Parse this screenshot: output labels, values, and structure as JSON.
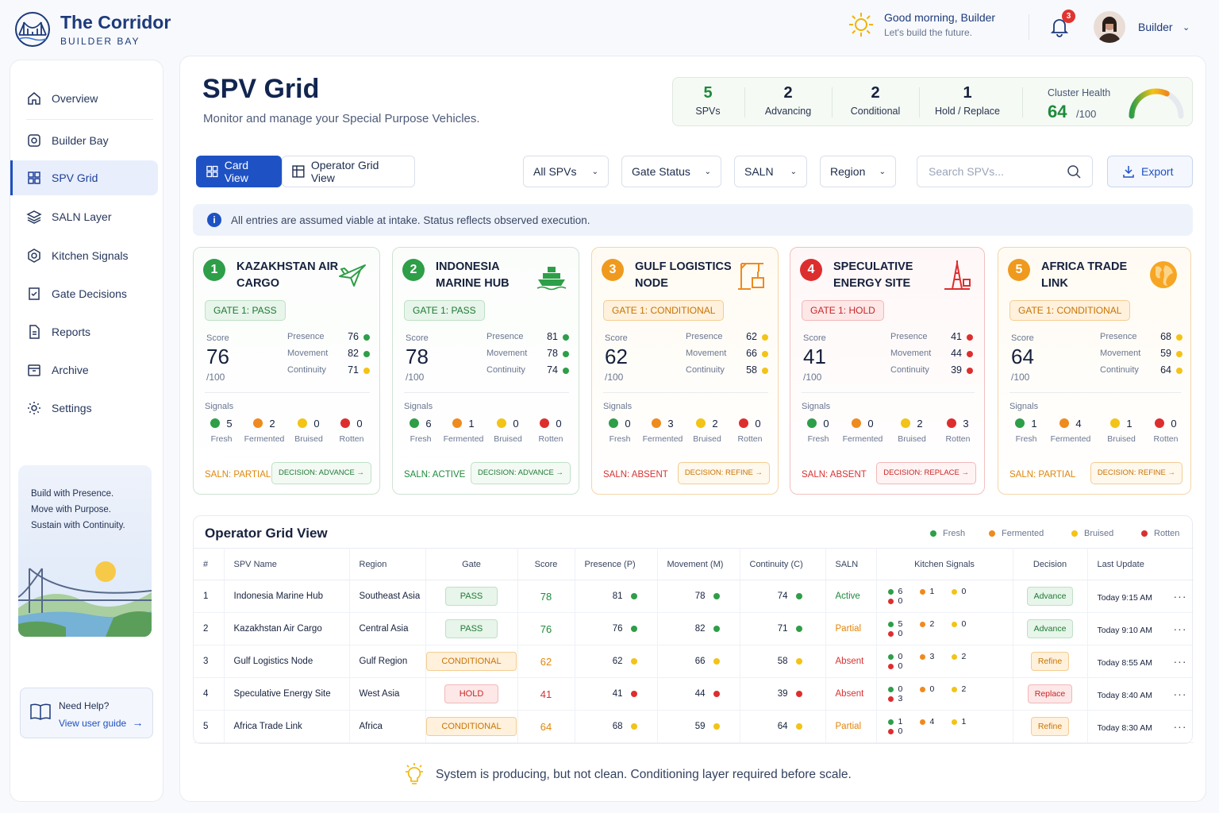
{
  "brand": {
    "title": "The Corridor",
    "subtitle": "BUILDER BAY"
  },
  "header": {
    "greeting": "Good morning, Builder",
    "tagline": "Let's build the future.",
    "notifications": "3",
    "user": "Builder"
  },
  "sidebar": {
    "items": [
      {
        "label": "Overview",
        "icon": "home-icon"
      },
      {
        "label": "Builder Bay",
        "icon": "builder-icon"
      },
      {
        "label": "SPV Grid",
        "icon": "grid-icon"
      },
      {
        "label": "SALN Layer",
        "icon": "layers-icon"
      },
      {
        "label": "Kitchen Signals",
        "icon": "signals-icon"
      },
      {
        "label": "Gate Decisions",
        "icon": "gate-icon"
      },
      {
        "label": "Reports",
        "icon": "report-icon"
      },
      {
        "label": "Archive",
        "icon": "archive-icon"
      },
      {
        "label": "Settings",
        "icon": "gear-icon"
      }
    ],
    "promo": [
      "Build with Presence.",
      "Move with Purpose.",
      "Sustain with Continuity."
    ],
    "help": {
      "title": "Need Help?",
      "link": "View user guide"
    }
  },
  "page": {
    "title": "SPV Grid",
    "subtitle": "Monitor and manage your Special Purpose Vehicles."
  },
  "stats": [
    {
      "n": "5",
      "l": "SPVs"
    },
    {
      "n": "2",
      "l": "Advancing"
    },
    {
      "n": "2",
      "l": "Conditional"
    },
    {
      "n": "1",
      "l": "Hold / Replace"
    }
  ],
  "cluster_health": {
    "label": "Cluster Health",
    "value": "64",
    "of": "/100",
    "fraction": 0.64
  },
  "toolbar": {
    "card_view": "Card View",
    "operator_view": "Operator Grid View",
    "filters": [
      "All SPVs",
      "Gate Status",
      "SALN",
      "Region"
    ],
    "search_placeholder": "Search SPVs...",
    "export": "Export"
  },
  "info": "All entries are assumed viable at intake. Status reflects observed execution.",
  "labels": {
    "score": "Score",
    "of": "/100",
    "presence": "Presence",
    "movement": "Movement",
    "continuity": "Continuity",
    "signals": "Signals",
    "fresh": "Fresh",
    "fermented": "Fermented",
    "bruised": "Bruised",
    "rotten": "Rotten"
  },
  "cards": [
    {
      "num": "1",
      "title": "KAZAKHSTAN AIR CARGO",
      "gate": "GATE 1: PASS",
      "score": "76",
      "p": "76",
      "m": "82",
      "c": "71",
      "sig": [
        "5",
        "2",
        "0",
        "0"
      ],
      "saln": "SALN: PARTIAL",
      "decision": "DECISION: ADVANCE"
    },
    {
      "num": "2",
      "title": "INDONESIA MARINE HUB",
      "gate": "GATE 1: PASS",
      "score": "78",
      "p": "81",
      "m": "78",
      "c": "74",
      "sig": [
        "6",
        "1",
        "0",
        "0"
      ],
      "saln": "SALN: ACTIVE",
      "decision": "DECISION: ADVANCE"
    },
    {
      "num": "3",
      "title": "GULF LOGISTICS NODE",
      "gate": "GATE 1: CONDITIONAL",
      "score": "62",
      "p": "62",
      "m": "66",
      "c": "58",
      "sig": [
        "0",
        "3",
        "2",
        "0"
      ],
      "saln": "SALN: ABSENT",
      "decision": "DECISION: REFINE"
    },
    {
      "num": "4",
      "title": "SPECULATIVE ENERGY SITE",
      "gate": "GATE 1: HOLD",
      "score": "41",
      "p": "41",
      "m": "44",
      "c": "39",
      "sig": [
        "0",
        "0",
        "2",
        "3"
      ],
      "saln": "SALN: ABSENT",
      "decision": "DECISION: REPLACE"
    },
    {
      "num": "5",
      "title": "AFRICA TRADE LINK",
      "gate": "GATE 1: CONDITIONAL",
      "score": "64",
      "p": "68",
      "m": "59",
      "c": "64",
      "sig": [
        "1",
        "4",
        "1",
        "0"
      ],
      "saln": "SALN: PARTIAL",
      "decision": "DECISION: REFINE"
    }
  ],
  "table": {
    "title": "Operator Grid View",
    "columns": [
      "#",
      "SPV Name",
      "Region",
      "Gate",
      "Score",
      "Presence (P)",
      "Movement (M)",
      "Continuity (C)",
      "SALN",
      "Kitchen Signals",
      "Decision",
      "Last Update"
    ],
    "rows": [
      {
        "n": "1",
        "name": "Indonesia Marine Hub",
        "region": "Southeast Asia",
        "gate": "PASS",
        "score": "78",
        "p": "81",
        "m": "78",
        "c": "74",
        "saln": "Active",
        "ks": [
          "6",
          "1",
          "0",
          "0"
        ],
        "decision": "Advance",
        "updated": "Today 9:15 AM"
      },
      {
        "n": "2",
        "name": "Kazakhstan Air Cargo",
        "region": "Central Asia",
        "gate": "PASS",
        "score": "76",
        "p": "76",
        "m": "82",
        "c": "71",
        "saln": "Partial",
        "ks": [
          "5",
          "2",
          "0",
          "0"
        ],
        "decision": "Advance",
        "updated": "Today 9:10 AM"
      },
      {
        "n": "3",
        "name": "Gulf Logistics Node",
        "region": "Gulf Region",
        "gate": "CONDITIONAL",
        "score": "62",
        "p": "62",
        "m": "66",
        "c": "58",
        "saln": "Absent",
        "ks": [
          "0",
          "3",
          "2",
          "0"
        ],
        "decision": "Refine",
        "updated": "Today 8:55 AM"
      },
      {
        "n": "4",
        "name": "Speculative Energy Site",
        "region": "West Asia",
        "gate": "HOLD",
        "score": "41",
        "p": "41",
        "m": "44",
        "c": "39",
        "saln": "Absent",
        "ks": [
          "0",
          "0",
          "2",
          "3"
        ],
        "decision": "Replace",
        "updated": "Today 8:40 AM"
      },
      {
        "n": "5",
        "name": "Africa Trade Link",
        "region": "Africa",
        "gate": "CONDITIONAL",
        "score": "64",
        "p": "68",
        "m": "59",
        "c": "64",
        "saln": "Partial",
        "ks": [
          "1",
          "4",
          "1",
          "0"
        ],
        "decision": "Refine",
        "updated": "Today 8:30 AM"
      }
    ]
  },
  "footer": "System is producing, but not clean. Conditioning layer required before scale.",
  "colors": {
    "accent": "#1e52c4",
    "pass": "#1f8a3c",
    "conditional": "#e0860b",
    "hold": "#d83232",
    "bruised": "#f3c316"
  }
}
